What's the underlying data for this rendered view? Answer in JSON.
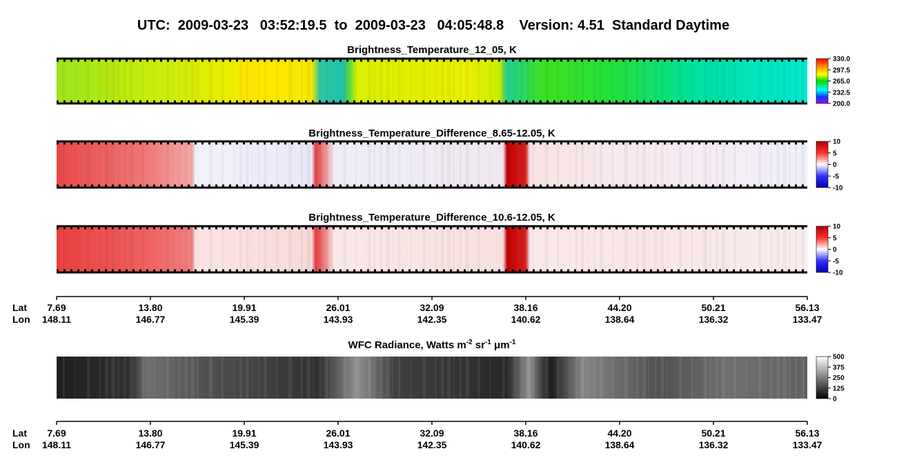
{
  "header": {
    "title": "UTC:  2009-03-23   03:52:19.5  to  2009-03-23   04:05:48.8    Version: 4.51  Standard Daytime"
  },
  "panels": [
    {
      "title": "Brightness_Temperature_12_05, K",
      "colorbar": {
        "lim": [
          200,
          330
        ],
        "ticks": [
          {
            "value": 330,
            "label": "330.0"
          },
          297.5,
          {
            "value": 265,
            "label": "265.0"
          },
          232.5,
          {
            "value": 200,
            "label": "200.0"
          }
        ]
      }
    },
    {
      "title": "Brightness_Temperature_Difference_8.65-12.05, K",
      "colorbar": {
        "lim": [
          -10,
          10
        ],
        "ticks": [
          10,
          5,
          0,
          -5,
          -10
        ]
      }
    },
    {
      "title": "Brightness_Temperature_Difference_10.6-12.05, K",
      "colorbar": {
        "lim": [
          -10,
          10
        ],
        "ticks": [
          10,
          5,
          0,
          -5,
          -10
        ]
      }
    },
    {
      "title_parts": [
        "WFC Radiance, Watts m",
        "-2",
        " sr",
        "-1",
        " μm",
        "-1"
      ],
      "colorbar": {
        "lim": [
          0,
          500
        ],
        "ticks": [
          500,
          375,
          250,
          125,
          0
        ]
      }
    }
  ],
  "axes": [
    {
      "lat_label": "Lat",
      "lon_label": "Lon",
      "lat": [
        "7.69",
        "13.80",
        "19.91",
        "26.01",
        "32.09",
        "38.16",
        "44.20",
        "50.21",
        "56.13"
      ],
      "lon": [
        "148.11",
        "146.77",
        "145.39",
        "143.93",
        "142.35",
        "140.62",
        "138.64",
        "136.32",
        "133.47"
      ]
    },
    {
      "lat_label": "Lat",
      "lon_label": "Lon",
      "lat": [
        "7.69",
        "13.80",
        "19.91",
        "26.01",
        "32.09",
        "38.16",
        "44.20",
        "50.21",
        "56.13"
      ],
      "lon": [
        "148.11",
        "146.77",
        "145.39",
        "143.93",
        "142.35",
        "140.62",
        "138.64",
        "136.32",
        "133.47"
      ]
    }
  ]
}
